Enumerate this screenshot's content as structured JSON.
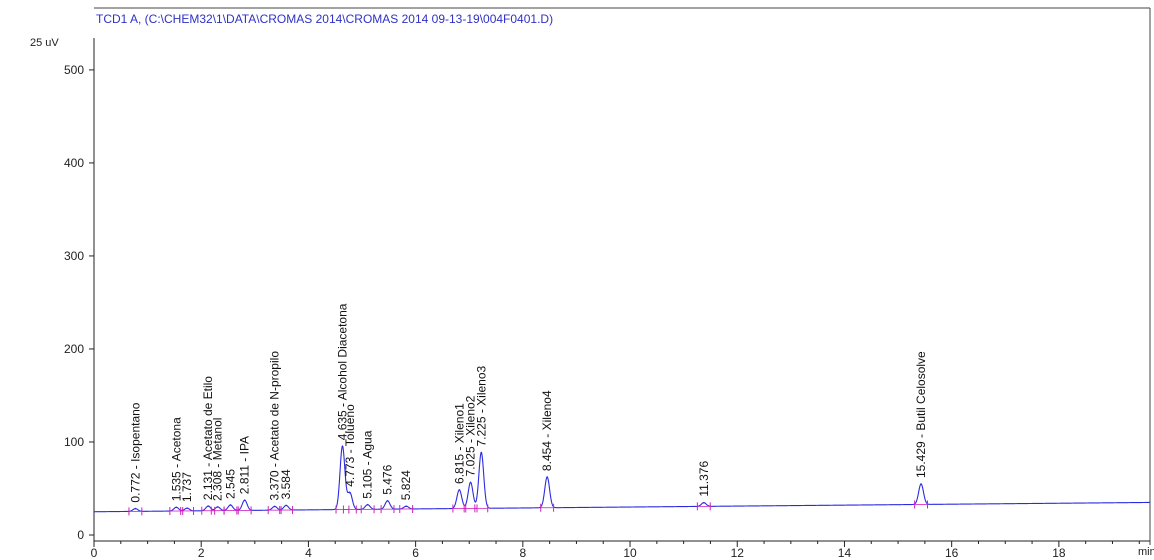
{
  "chart_data": {
    "type": "line",
    "title": "TCD1 A, (C:\\CHEM32\\1\\DATA\\CROMAS 2014\\CROMAS 2014 09-13-19\\004F0401.D)",
    "ylabel": "25 uV",
    "xlabel": "min",
    "xlim": [
      0,
      19.7
    ],
    "ylim": [
      0,
      530
    ],
    "x_ticks": [
      0,
      2,
      4,
      6,
      8,
      10,
      12,
      14,
      16,
      18
    ],
    "y_ticks": [
      0,
      100,
      200,
      300,
      400,
      500
    ],
    "baseline": {
      "start": 25,
      "end": 35
    },
    "colors": {
      "signal": "#2b2be0",
      "integration": "#d020c0",
      "axis": "#222222",
      "title": "#2f31c8"
    },
    "peaks": [
      {
        "rt": 0.772,
        "label": "0.772 - Isopentano",
        "height": 3
      },
      {
        "rt": 1.535,
        "label": "1.535 - Acetona",
        "height": 4
      },
      {
        "rt": 1.737,
        "label": "1.737",
        "height": 3
      },
      {
        "rt": 2.131,
        "label": "2.131 - Acetato de Etilo",
        "height": 5
      },
      {
        "rt": 2.308,
        "label": "2.308 - Metanol",
        "height": 4
      },
      {
        "rt": 2.545,
        "label": "2.545",
        "height": 6
      },
      {
        "rt": 2.811,
        "label": "2.811 - IPA",
        "height": 11
      },
      {
        "rt": 3.37,
        "label": "3.370 - Acetato de N-propilo",
        "height": 4
      },
      {
        "rt": 3.584,
        "label": "3.584",
        "height": 5
      },
      {
        "rt": 4.635,
        "label": "4.635 - Alcohol Diacetona",
        "height": 68
      },
      {
        "rt": 4.773,
        "label": "4.773 - Tolueno",
        "height": 18
      },
      {
        "rt": 5.105,
        "label": "5.105 - Agua",
        "height": 5
      },
      {
        "rt": 5.476,
        "label": "5.476",
        "height": 9
      },
      {
        "rt": 5.824,
        "label": "5.824",
        "height": 3
      },
      {
        "rt": 6.815,
        "label": "6.815 - Xileno1",
        "height": 20
      },
      {
        "rt": 7.025,
        "label": "7.025 - Xileno2",
        "height": 28
      },
      {
        "rt": 7.225,
        "label": "7.225 - Xileno3",
        "height": 60
      },
      {
        "rt": 8.454,
        "label": "8.454 - Xileno4",
        "height": 33
      },
      {
        "rt": 11.376,
        "label": "11.376",
        "height": 4
      },
      {
        "rt": 15.429,
        "label": "15.429 - Butil Celosolve",
        "height": 22
      }
    ]
  }
}
